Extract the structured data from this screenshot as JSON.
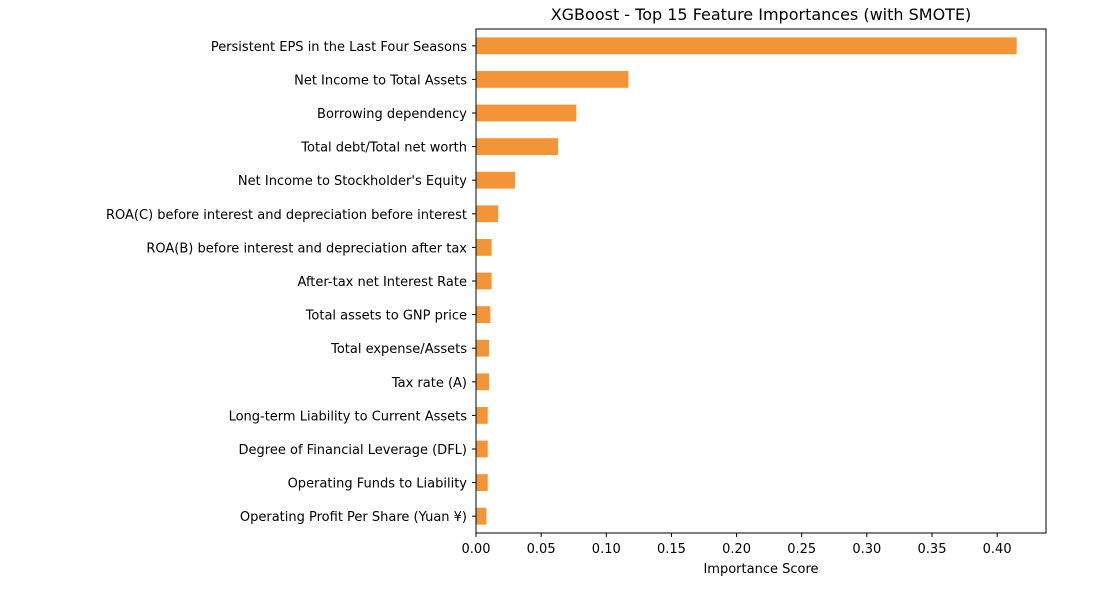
{
  "chart_data": {
    "type": "bar",
    "orientation": "horizontal",
    "title": "XGBoost - Top 15 Feature Importances (with SMOTE)",
    "xlabel": "Importance Score",
    "ylabel": "",
    "xlim": [
      0,
      0.4375
    ],
    "xticks": [
      "0.00",
      "0.05",
      "0.10",
      "0.15",
      "0.20",
      "0.25",
      "0.30",
      "0.35",
      "0.40"
    ],
    "grid": false,
    "bar_color": "#f39536",
    "categories": [
      "Persistent EPS in the Last Four Seasons",
      "Net Income to Total Assets",
      "Borrowing dependency",
      "Total debt/Total net worth",
      "Net Income to Stockholder's Equity",
      "ROA(C) before interest and depreciation before interest",
      "ROA(B) before interest and depreciation after tax",
      "After-tax net Interest Rate",
      "Total assets to GNP price",
      "Total expense/Assets",
      "Tax rate (A)",
      "Long-term Liability to Current Assets",
      "Degree of Financial Leverage (DFL)",
      "Operating Funds to Liability",
      "Operating Profit Per Share (Yuan ¥)"
    ],
    "values": [
      0.415,
      0.117,
      0.077,
      0.063,
      0.03,
      0.017,
      0.012,
      0.012,
      0.011,
      0.01,
      0.01,
      0.009,
      0.009,
      0.009,
      0.008
    ]
  }
}
